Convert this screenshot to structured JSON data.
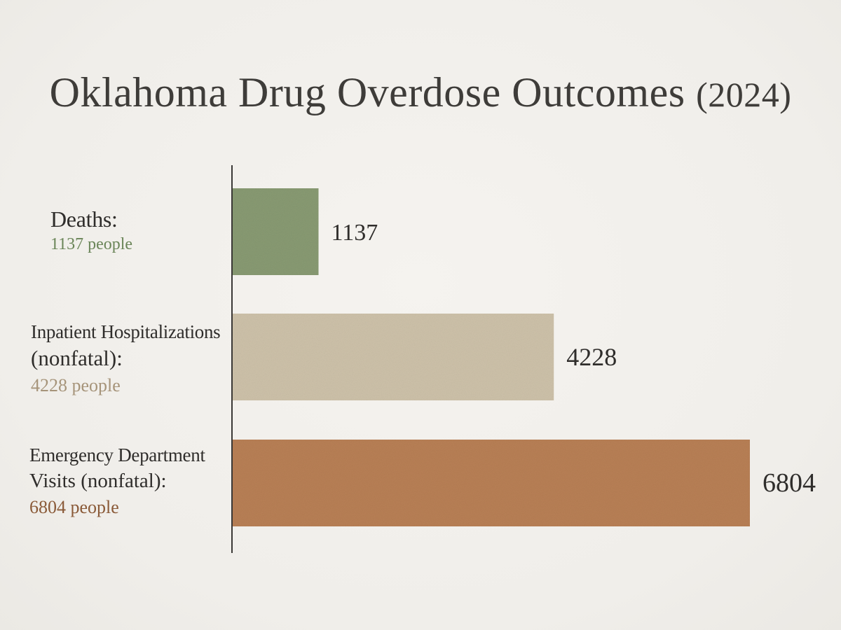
{
  "chart_data": {
    "type": "bar",
    "orientation": "horizontal",
    "title": "Oklahoma Drug Overdose Outcomes",
    "title_suffix": "(2024)",
    "categories": [
      {
        "line1": "Deaths:",
        "line2": "",
        "sub": "1137 people",
        "color": "#889a72",
        "sub_color": "#6a8558"
      },
      {
        "line1": "Inpatient Hospitalizations",
        "line2": "(nonfatal):",
        "sub": "4228 people",
        "color": "#cdc1a9",
        "sub_color": "#a6947a"
      },
      {
        "line1": "Emergency Department",
        "line2": "Visits (nonfatal):",
        "sub": "6804 people",
        "color": "#b87f55",
        "sub_color": "#8a5a38"
      }
    ],
    "values": [
      1137,
      4228,
      6804
    ],
    "value_labels": [
      "1137",
      "4228",
      "6804"
    ],
    "grid": false,
    "legend": "none"
  }
}
